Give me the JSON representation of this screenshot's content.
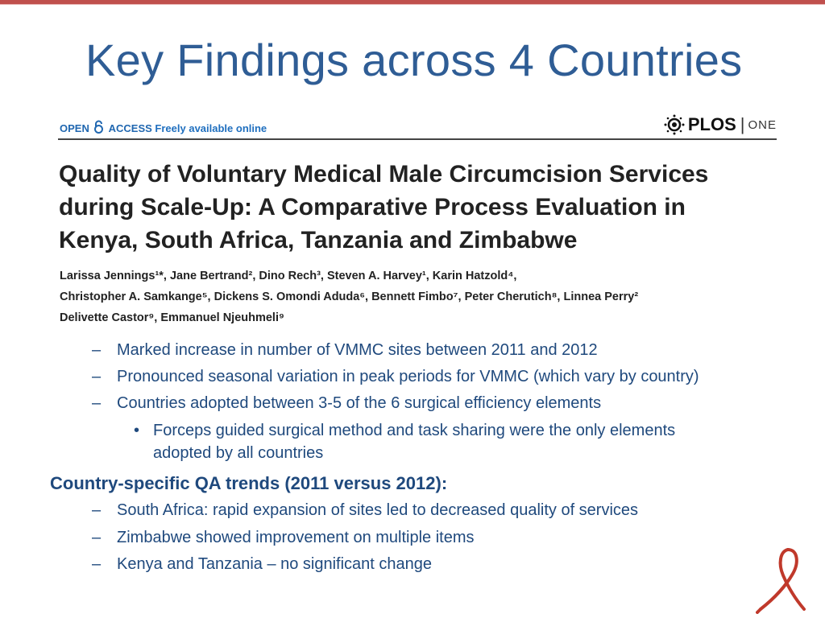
{
  "slide": {
    "title": "Key Findings across 4 Countries"
  },
  "paper": {
    "open_access_prefix": "OPEN",
    "open_access_label": "ACCESS",
    "freely_available": "Freely available online",
    "journal_logo": "PLOS",
    "journal_name": "ONE",
    "title_lines": [
      "Quality of Voluntary Medical Male Circumcision Services",
      "during Scale-Up: A Comparative Process Evaluation in",
      "Kenya, South Africa, Tanzania and Zimbabwe"
    ],
    "author_lines": [
      "Larissa Jennings¹*, Jane Bertrand², Dino Rech³, Steven A. Harvey¹, Karin Hatzold⁴,",
      "Christopher A. Samkange⁵, Dickens S. Omondi Aduda⁶, Bennett Fimbo⁷, Peter Cherutich⁸, Linnea Perry²",
      "Delivette Castor⁹, Emmanuel Njeuhmeli⁹"
    ]
  },
  "findings": {
    "dash": "–",
    "dot": "•",
    "general": [
      "Marked increase in number of VMMC sites between 2011 and 2012",
      "Pronounced seasonal variation in peak periods for VMMC (which vary by country)",
      "Countries adopted between 3-5 of the 6 surgical efficiency elements"
    ],
    "sub_bullet_lines": [
      "Forceps guided surgical method and task sharing were the only elements",
      "adopted by all countries"
    ],
    "qa_heading": "Country-specific QA trends (2011 versus 2012):",
    "qa_items": [
      "South Africa: rapid expansion of sites led to decreased quality of services",
      "Zimbabwe showed improvement on multiple items",
      "Kenya and Tanzania – no significant change"
    ]
  },
  "colors": {
    "accent_border": "#c0504d",
    "title_blue": "#2f5d95",
    "body_blue": "#1f497d",
    "ribbon_red": "#c0392b"
  },
  "icons": {
    "open_access": "open-lock-icon",
    "plos": "plos-logo-icon",
    "ribbon": "awareness-ribbon-icon"
  }
}
